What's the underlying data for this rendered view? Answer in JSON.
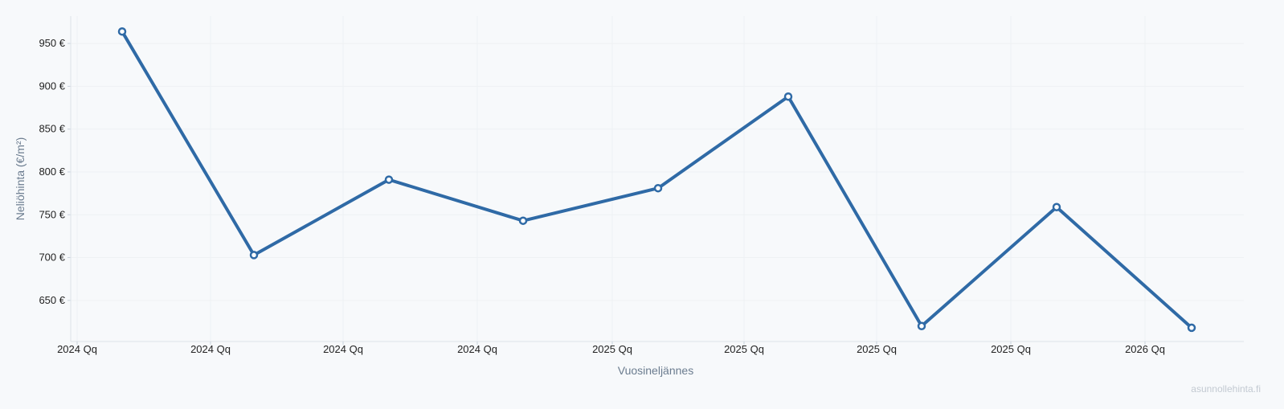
{
  "chart_data": {
    "type": "line",
    "title": "",
    "xlabel": "Vuosineljännes",
    "ylabel": "Neliöhinta (€/m²)",
    "x_tick_labels": [
      "2024 Qq",
      "2024 Qq",
      "2024 Qq",
      "2024 Qq",
      "2025 Qq",
      "2025 Qq",
      "2025 Qq",
      "2025 Qq",
      "2026 Qq"
    ],
    "y_ticks": [
      650,
      700,
      750,
      800,
      850,
      900,
      950
    ],
    "y_tick_suffix": " €",
    "ylim": [
      602,
      982
    ],
    "grid": true,
    "legend": "none",
    "series": [
      {
        "values": [
          964,
          703,
          791,
          743,
          781,
          888,
          620,
          759,
          618
        ],
        "color": "#2f6aa6"
      }
    ]
  },
  "watermark": "asunnollehinta.fi"
}
